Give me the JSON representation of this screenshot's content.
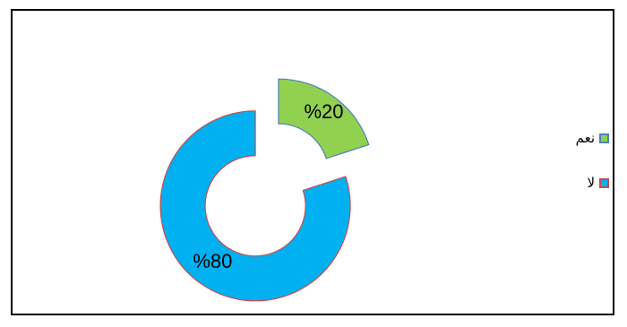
{
  "chart_data": {
    "type": "pie",
    "style": "exploded-donut",
    "title": "",
    "slices": [
      {
        "name": "نعم",
        "value": 20,
        "label": "%20",
        "color": "#92D050",
        "edge": "#4F81BD"
      },
      {
        "name": "لا",
        "value": 80,
        "label": "%80",
        "color": "#00B0F0",
        "edge": "#C0504D"
      }
    ],
    "legend": {
      "placement": "right",
      "items": [
        {
          "label": "نعم",
          "color": "#92D050",
          "edge": "#4F81BD"
        },
        {
          "label": "لا",
          "color": "#00B0F0",
          "edge": "#C0504D"
        }
      ]
    }
  }
}
